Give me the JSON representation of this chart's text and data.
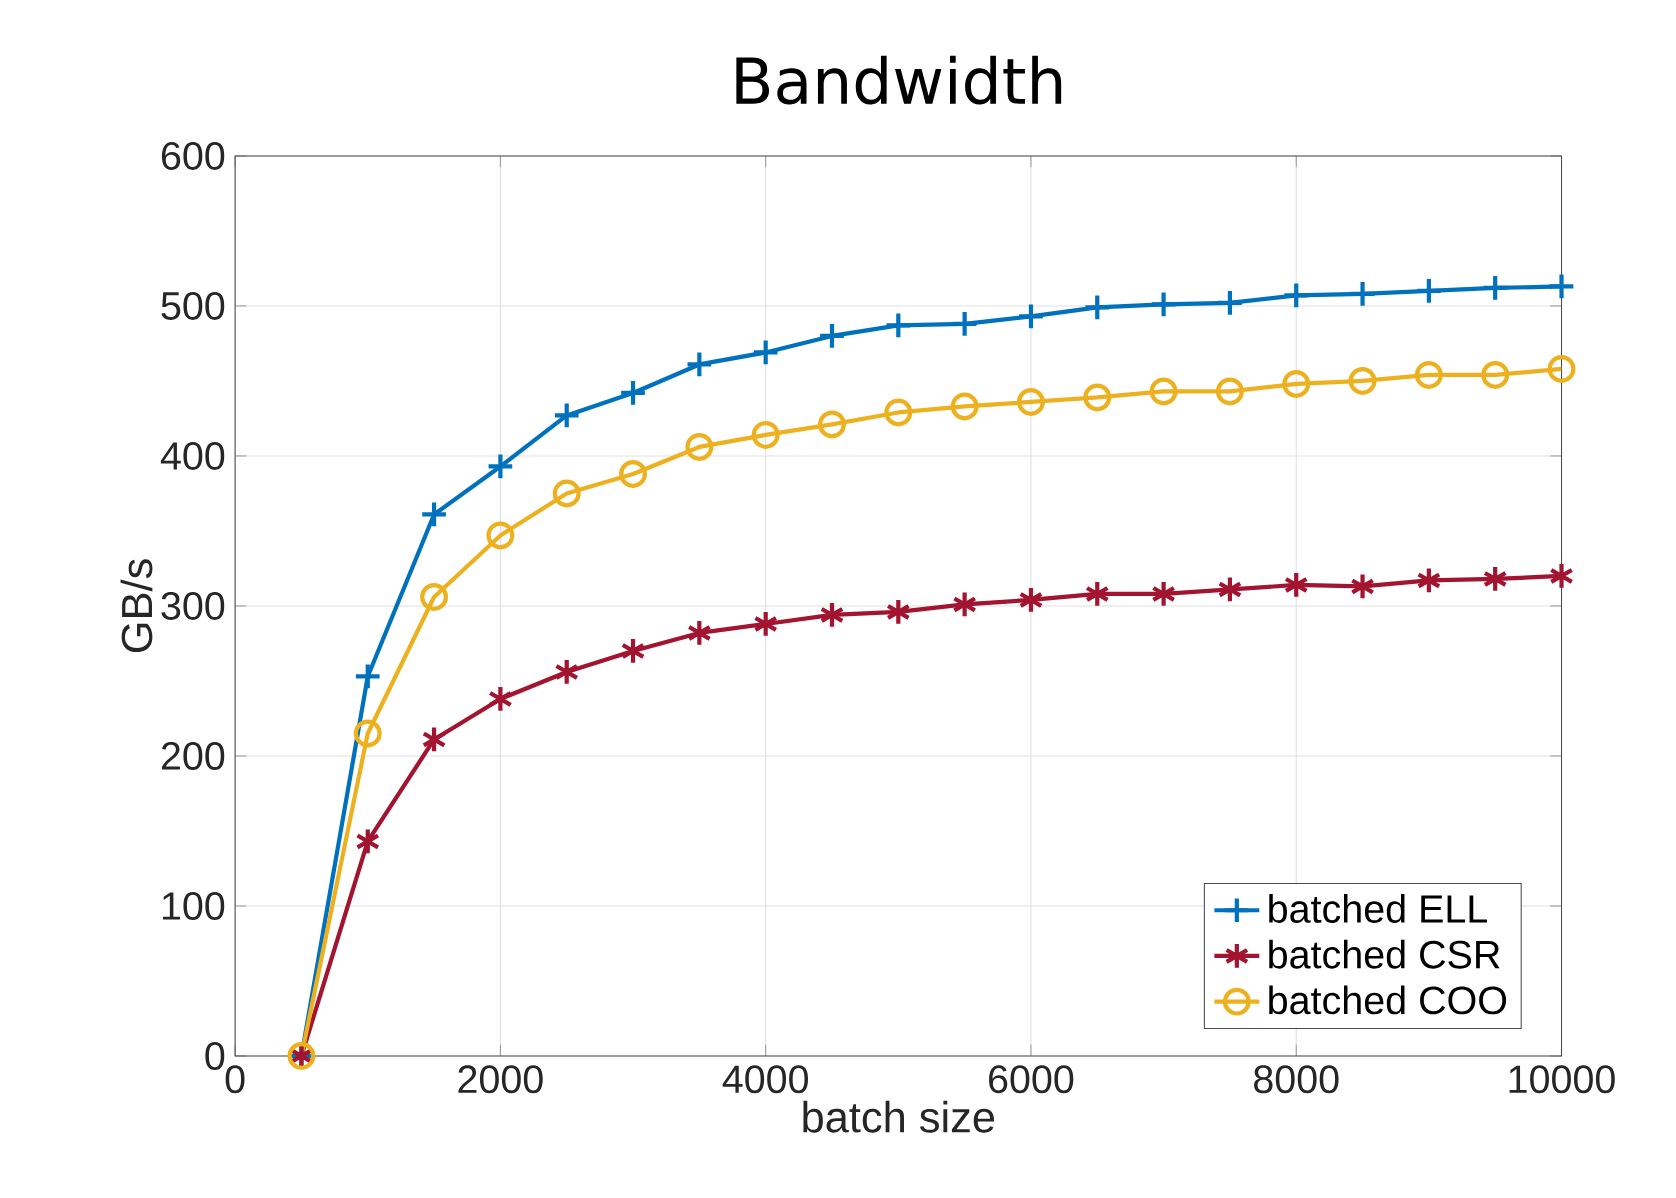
{
  "chart_data": {
    "type": "line",
    "title": "Bandwidth",
    "xlabel": "batch size",
    "ylabel": "GB/s",
    "x": [
      500,
      1000,
      1500,
      2000,
      2500,
      3000,
      3500,
      4000,
      4500,
      5000,
      5500,
      6000,
      6500,
      7000,
      7500,
      8000,
      8500,
      9000,
      9500,
      10000
    ],
    "series": [
      {
        "name": "batched ELL",
        "color": "#0072bd",
        "marker": "plus",
        "values": [
          0,
          253,
          361,
          393,
          427,
          442,
          461,
          469,
          480,
          487,
          488,
          493,
          499,
          501,
          502,
          507,
          508,
          510,
          512,
          513
        ]
      },
      {
        "name": "batched CSR",
        "color": "#a2142f",
        "marker": "cross",
        "values": [
          0,
          143,
          211,
          238,
          256,
          270,
          282,
          288,
          294,
          296,
          301,
          304,
          308,
          308,
          311,
          314,
          313,
          317,
          318,
          320
        ]
      },
      {
        "name": "batched COO",
        "color": "#edb120",
        "marker": "circle",
        "values": [
          0,
          215,
          306,
          347,
          375,
          388,
          406,
          414,
          421,
          429,
          433,
          436,
          439,
          443,
          443,
          448,
          450,
          454,
          454,
          458
        ]
      }
    ],
    "xlim": [
      0,
      10000
    ],
    "ylim": [
      0,
      600
    ],
    "xticks": [
      0,
      2000,
      4000,
      6000,
      8000,
      10000
    ],
    "yticks": [
      0,
      100,
      200,
      300,
      400,
      500,
      600
    ],
    "grid": true,
    "legend": "bottom right",
    "line_style": "solid"
  }
}
